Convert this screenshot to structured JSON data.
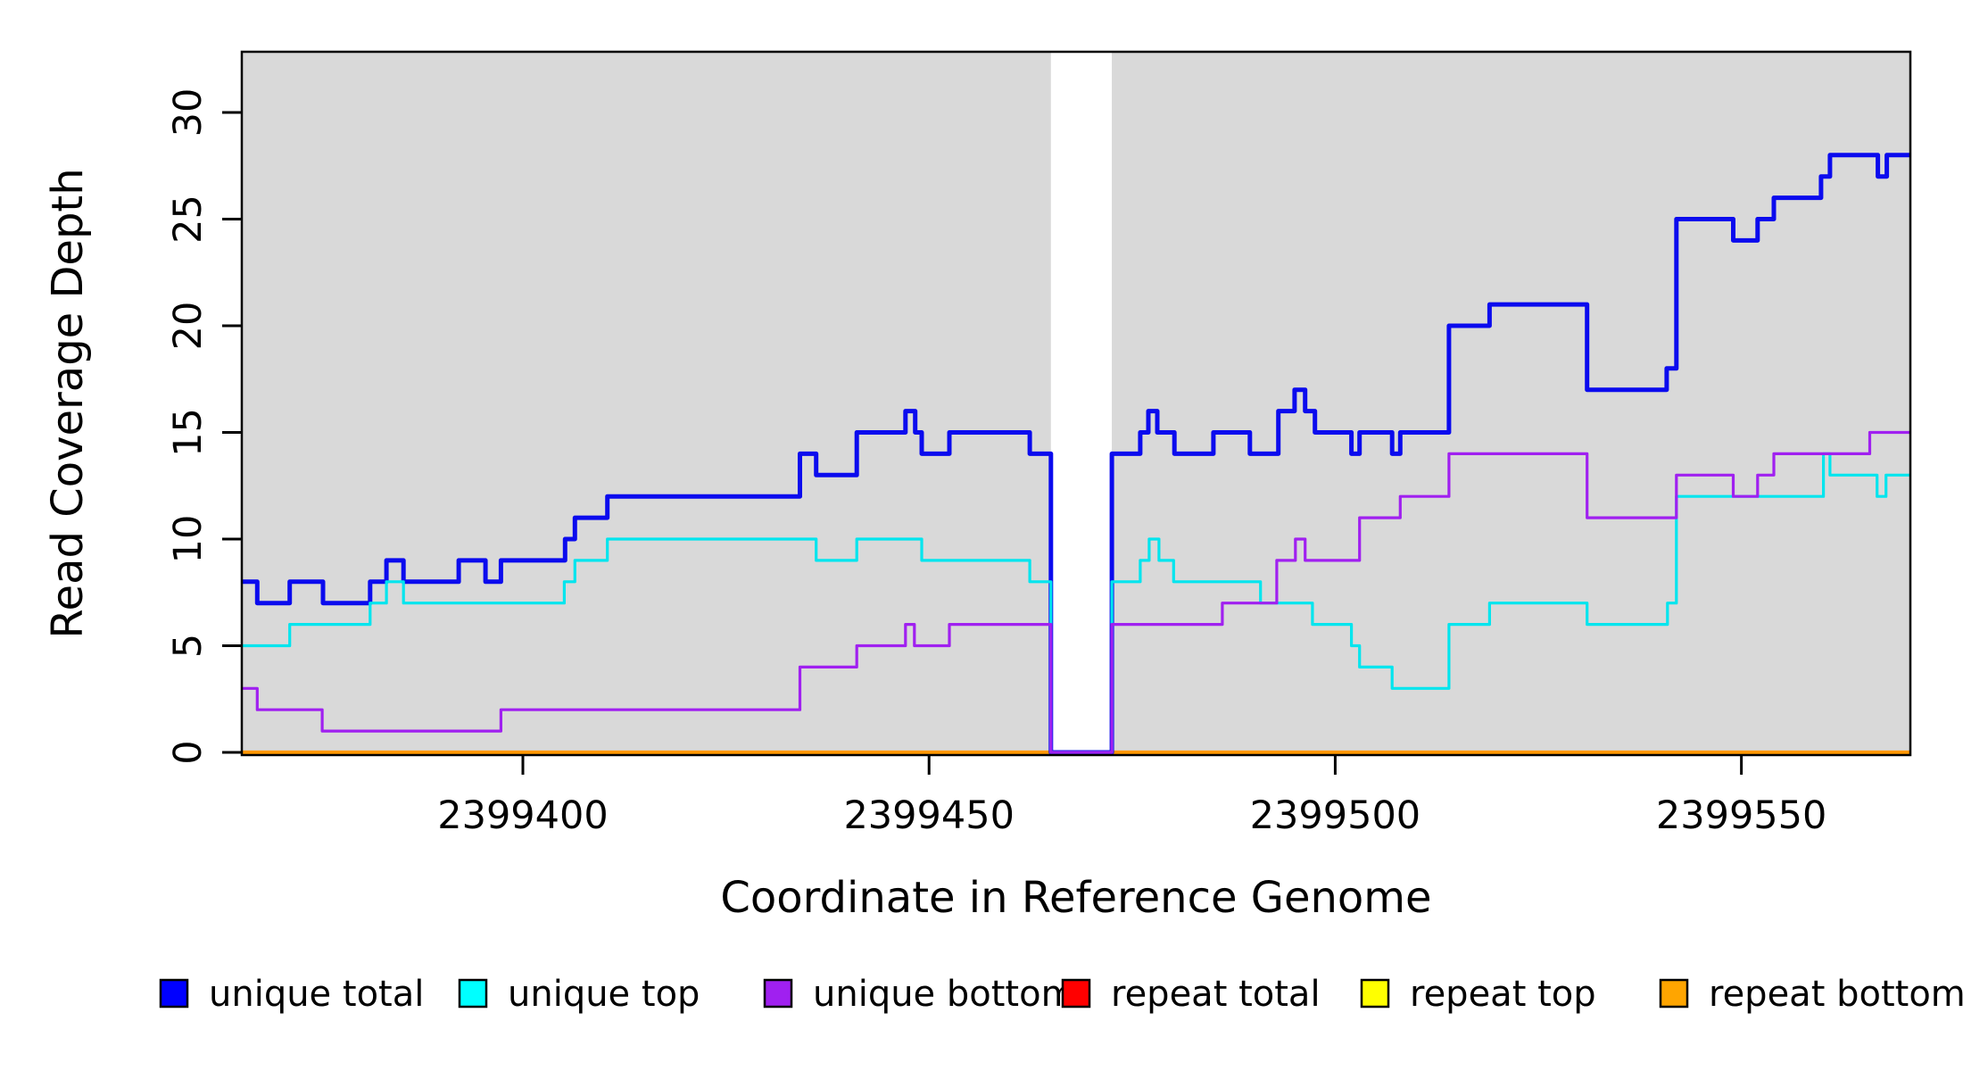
{
  "figure": {
    "xlabel": "Coordinate in Reference Genome",
    "ylabel": "Read Coverage Depth",
    "panel_bg": "#d9d9d9",
    "gap_color": "#ffffff",
    "axis_color": "#000000"
  },
  "chart_data": {
    "type": "line",
    "step": true,
    "title": "",
    "xlabel": "Coordinate in Reference Genome",
    "ylabel": "Read Coverage Depth",
    "xlim": [
      2399365.4,
      2399570.8
    ],
    "ylim": [
      0,
      32.8
    ],
    "grid": false,
    "legend_position": "bottom",
    "x_ticks": [
      {
        "value": 2399400,
        "label": "2399400"
      },
      {
        "value": 2399450,
        "label": "2399450"
      },
      {
        "value": 2399500,
        "label": "2399500"
      },
      {
        "value": 2399550,
        "label": "2399550"
      }
    ],
    "y_ticks": [
      {
        "value": 0,
        "label": "0"
      },
      {
        "value": 5,
        "label": "5"
      },
      {
        "value": 10,
        "label": "10"
      },
      {
        "value": 15,
        "label": "15"
      },
      {
        "value": 20,
        "label": "20"
      },
      {
        "value": 25,
        "label": "25"
      },
      {
        "value": 30,
        "label": "30"
      }
    ],
    "gap_region": {
      "x_start": 2399465.0,
      "x_end": 2399472.5,
      "note": "no-data band, lines drop to 0"
    },
    "series": [
      {
        "name": "unique total",
        "color": "#0b0bee",
        "legend_color": "#0000ff",
        "line_width": 5,
        "steps": [
          [
            2399365.4,
            8
          ],
          [
            2399367.3,
            7
          ],
          [
            2399371.3,
            8
          ],
          [
            2399375.4,
            7
          ],
          [
            2399381.2,
            8
          ],
          [
            2399383.2,
            9
          ],
          [
            2399385.3,
            8
          ],
          [
            2399392.1,
            9
          ],
          [
            2399395.4,
            8
          ],
          [
            2399397.3,
            9
          ],
          [
            2399405.2,
            10
          ],
          [
            2399406.4,
            11
          ],
          [
            2399410.4,
            12
          ],
          [
            2399434.1,
            14
          ],
          [
            2399436.1,
            13
          ],
          [
            2399441.1,
            15
          ],
          [
            2399447.1,
            16
          ],
          [
            2399448.3,
            15
          ],
          [
            2399449.1,
            14
          ],
          [
            2399452.5,
            15
          ],
          [
            2399462.4,
            14
          ],
          [
            2399465.0,
            0
          ],
          [
            2399472.5,
            14
          ],
          [
            2399476.0,
            15
          ],
          [
            2399477.0,
            16
          ],
          [
            2399478.1,
            15
          ],
          [
            2399480.2,
            14
          ],
          [
            2399485.0,
            15
          ],
          [
            2399489.5,
            14
          ],
          [
            2399493.0,
            16
          ],
          [
            2399495.0,
            17
          ],
          [
            2399496.3,
            16
          ],
          [
            2399497.5,
            15
          ],
          [
            2399502.0,
            14
          ],
          [
            2399503.0,
            15
          ],
          [
            2399507.0,
            14
          ],
          [
            2399508.0,
            15
          ],
          [
            2399514.0,
            20
          ],
          [
            2399519.0,
            21
          ],
          [
            2399531.0,
            17
          ],
          [
            2399540.8,
            18
          ],
          [
            2399542.0,
            25
          ],
          [
            2399549.0,
            24
          ],
          [
            2399552.0,
            25
          ],
          [
            2399554.0,
            26
          ],
          [
            2399559.8,
            27
          ],
          [
            2399560.9,
            28
          ],
          [
            2399566.8,
            27
          ],
          [
            2399567.9,
            28
          ]
        ]
      },
      {
        "name": "unique top",
        "color": "#00e5ee",
        "legend_color": "#00ffff",
        "line_width": 3.2,
        "steps": [
          [
            2399365.4,
            5
          ],
          [
            2399371.3,
            6
          ],
          [
            2399381.2,
            7
          ],
          [
            2399383.2,
            8
          ],
          [
            2399385.3,
            7
          ],
          [
            2399405.1,
            8
          ],
          [
            2399406.4,
            9
          ],
          [
            2399410.4,
            10
          ],
          [
            2399436.1,
            9
          ],
          [
            2399441.1,
            10
          ],
          [
            2399449.1,
            9
          ],
          [
            2399462.4,
            8
          ],
          [
            2399465.0,
            0
          ],
          [
            2399472.5,
            8
          ],
          [
            2399476.0,
            9
          ],
          [
            2399477.1,
            10
          ],
          [
            2399478.3,
            9
          ],
          [
            2399480.1,
            8
          ],
          [
            2399490.8,
            7
          ],
          [
            2399497.2,
            6
          ],
          [
            2399502.0,
            5
          ],
          [
            2399503.0,
            4
          ],
          [
            2399507.0,
            3
          ],
          [
            2399514.0,
            6
          ],
          [
            2399519.0,
            7
          ],
          [
            2399531.0,
            6
          ],
          [
            2399540.9,
            7
          ],
          [
            2399542.0,
            12
          ],
          [
            2399560.1,
            14
          ],
          [
            2399560.9,
            13
          ],
          [
            2399566.7,
            12
          ],
          [
            2399567.8,
            13
          ]
        ]
      },
      {
        "name": "unique bottom",
        "color": "#a020f0",
        "legend_color": "#a020f0",
        "line_width": 3.2,
        "steps": [
          [
            2399365.4,
            3
          ],
          [
            2399367.3,
            2
          ],
          [
            2399375.3,
            1
          ],
          [
            2399397.3,
            2
          ],
          [
            2399434.1,
            4
          ],
          [
            2399441.1,
            5
          ],
          [
            2399447.1,
            6
          ],
          [
            2399448.2,
            5
          ],
          [
            2399452.5,
            6
          ],
          [
            2399465.0,
            0
          ],
          [
            2399472.5,
            6
          ],
          [
            2399486.1,
            7
          ],
          [
            2399492.8,
            9
          ],
          [
            2399495.1,
            10
          ],
          [
            2399496.3,
            9
          ],
          [
            2399503.0,
            11
          ],
          [
            2399508.0,
            12
          ],
          [
            2399514.0,
            14
          ],
          [
            2399531.0,
            11
          ],
          [
            2399542.0,
            13
          ],
          [
            2399549.0,
            12
          ],
          [
            2399552.0,
            13
          ],
          [
            2399554.0,
            14
          ],
          [
            2399565.8,
            15
          ]
        ]
      },
      {
        "name": "repeat total",
        "color": "#ff0000",
        "legend_color": "#ff0000",
        "line_width": 3,
        "steps": [
          [
            2399365.4,
            0
          ]
        ]
      },
      {
        "name": "repeat top",
        "color": "#ffff00",
        "legend_color": "#ffff00",
        "line_width": 3,
        "steps": [
          [
            2399365.4,
            0
          ]
        ]
      },
      {
        "name": "repeat bottom",
        "color": "#ff9800",
        "legend_color": "#ffa500",
        "line_width": 4.2,
        "steps": [
          [
            2399365.4,
            0
          ]
        ]
      }
    ],
    "legend": [
      {
        "label": "unique total",
        "color": "#0000ff"
      },
      {
        "label": "unique top",
        "color": "#00ffff"
      },
      {
        "label": "unique bottom",
        "color": "#a020f0"
      },
      {
        "label": "repeat total",
        "color": "#ff0000"
      },
      {
        "label": "repeat top",
        "color": "#ffff00"
      },
      {
        "label": "repeat bottom",
        "color": "#ffa500"
      }
    ]
  }
}
